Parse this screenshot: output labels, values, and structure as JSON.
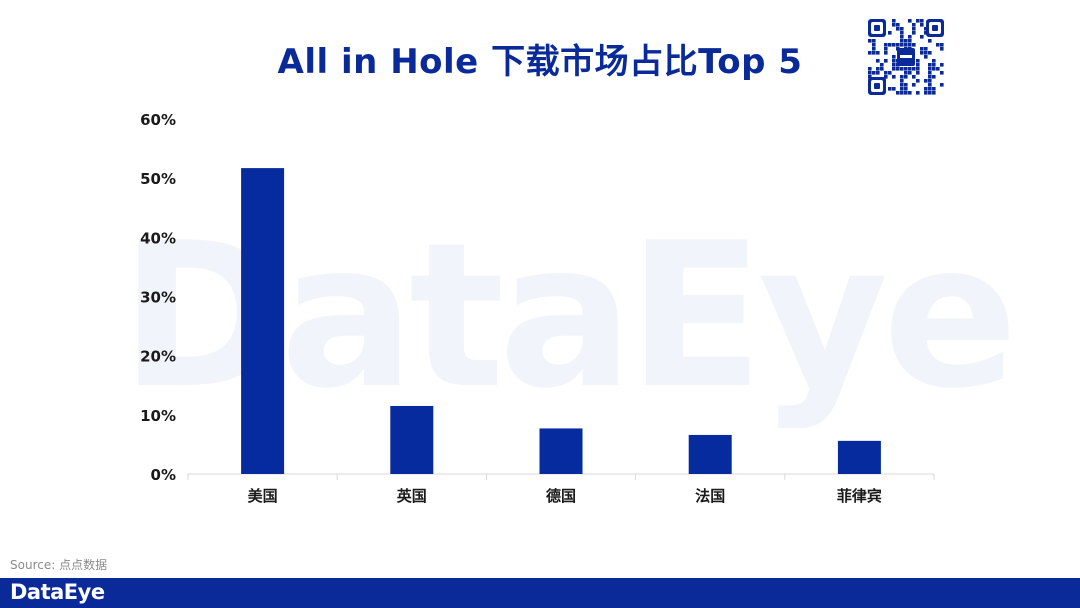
{
  "header": {
    "title": "All in Hole 下载市场占比Top 5"
  },
  "watermark": "DataEye",
  "footer": {
    "source": "Source: 点点数据",
    "brand": "DataEye"
  },
  "colors": {
    "accent": "#0a2a99",
    "bar": "#062b9e",
    "watermark": "#f1f5fb"
  },
  "chart_data": {
    "type": "bar",
    "title": "All in Hole 下载市场占比Top 5",
    "categories": [
      "美国",
      "英国",
      "德国",
      "法国",
      "菲律宾"
    ],
    "values": [
      51.7,
      11.5,
      7.7,
      6.6,
      5.6
    ],
    "unit": "%",
    "ylim": [
      0,
      60
    ],
    "yticks": [
      "0%",
      "10%",
      "20%",
      "30%",
      "40%",
      "50%",
      "60%"
    ],
    "grid": false,
    "xlabel": "",
    "ylabel": ""
  }
}
